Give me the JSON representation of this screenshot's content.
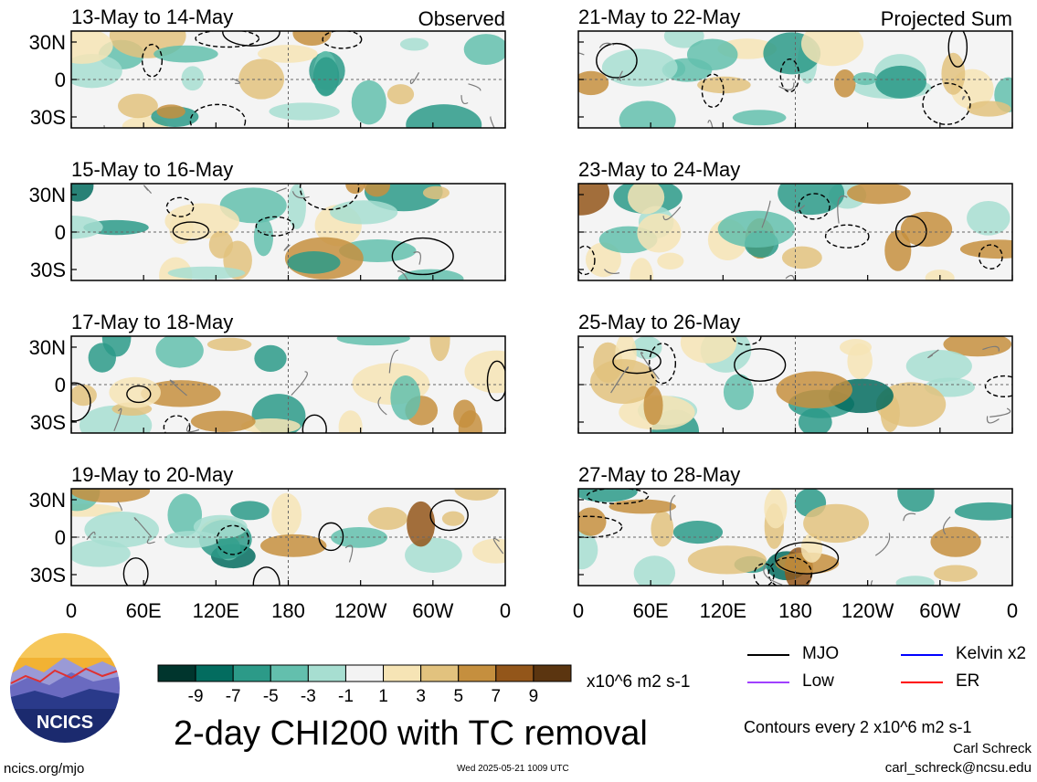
{
  "chart_data": {
    "type": "heatmap",
    "title": "2-day CHI200 with TC removal",
    "units": "x10^6 m2 s-1",
    "contour_note": "Contours every 2 x10^6 m2 s-1",
    "x_ticks": [
      "0",
      "60E",
      "120E",
      "180",
      "120W",
      "60W",
      "0"
    ],
    "y_ticks": [
      "30N",
      "0",
      "30S"
    ],
    "colorbar": {
      "labels": [
        "-9",
        "-7",
        "-5",
        "-3",
        "-1",
        "1",
        "3",
        "5",
        "7",
        "9"
      ],
      "colors": [
        "#00352d",
        "#036c5f",
        "#2c9a88",
        "#63bfad",
        "#a7ded1",
        "#f3f3f3",
        "#f6e4b5",
        "#e2c27e",
        "#c58f3e",
        "#93561a",
        "#5b3510"
      ]
    },
    "legend": [
      {
        "name": "MJO",
        "color": "#000000"
      },
      {
        "name": "Kelvin x2",
        "color": "#0000ff"
      },
      {
        "name": "Low",
        "color": "#a040ff"
      },
      {
        "name": "ER",
        "color": "#ff0000"
      }
    ],
    "panels": [
      {
        "period": "13-May to 14-May",
        "tag": "Observed"
      },
      {
        "period": "21-May to 22-May",
        "tag": "Projected Sum"
      },
      {
        "period": "15-May to 16-May",
        "tag": ""
      },
      {
        "period": "23-May to 24-May",
        "tag": ""
      },
      {
        "period": "17-May to 18-May",
        "tag": ""
      },
      {
        "period": "25-May to 26-May",
        "tag": ""
      },
      {
        "period": "19-May to 20-May",
        "tag": ""
      },
      {
        "period": "27-May to 28-May",
        "tag": ""
      }
    ]
  },
  "logo_text": "NCICS",
  "footer": {
    "url": "ncics.org/mjo",
    "timestamp": "Wed 2025-05-21 1009 UTC",
    "author": "Carl Schreck",
    "email": "carl_schreck@ncsu.edu"
  }
}
